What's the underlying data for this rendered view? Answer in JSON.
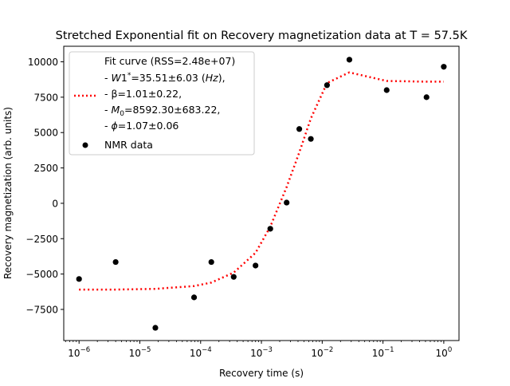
{
  "chart_data": {
    "type": "scatter",
    "title": "Stretched Exponential fit on Recovery magnetization data at T = 57.5K",
    "xlabel": "Recovery time (s)",
    "ylabel": "Recovery magnetization (arb. units)",
    "xscale": "log",
    "xlim": [
      5.6e-07,
      1.78
    ],
    "ylim": [
      -9700,
      11100
    ],
    "grid": false,
    "legend_position": "top-left",
    "x_ticks": [
      {
        "value": 1e-06,
        "base": "10",
        "exp": "−6"
      },
      {
        "value": 1e-05,
        "base": "10",
        "exp": "−5"
      },
      {
        "value": 0.0001,
        "base": "10",
        "exp": "−4"
      },
      {
        "value": 0.001,
        "base": "10",
        "exp": "−3"
      },
      {
        "value": 0.01,
        "base": "10",
        "exp": "−2"
      },
      {
        "value": 0.1,
        "base": "10",
        "exp": "−1"
      },
      {
        "value": 1,
        "base": "10",
        "exp": "0"
      }
    ],
    "y_ticks": [
      {
        "value": -7500,
        "label": "−7500"
      },
      {
        "value": -5000,
        "label": "−5000"
      },
      {
        "value": -2500,
        "label": "−2500"
      },
      {
        "value": 0,
        "label": "0"
      },
      {
        "value": 2500,
        "label": "2500"
      },
      {
        "value": 5000,
        "label": "5000"
      },
      {
        "value": 7500,
        "label": "7500"
      },
      {
        "value": 10000,
        "label": "10000"
      }
    ],
    "series": [
      {
        "name": "NMR data",
        "kind": "scatter",
        "color": "#000000",
        "points": [
          {
            "x": 1e-06,
            "y": -5350
          },
          {
            "x": 4e-06,
            "y": -4150
          },
          {
            "x": 1.8e-05,
            "y": -8800
          },
          {
            "x": 7.8e-05,
            "y": -6650
          },
          {
            "x": 0.00015,
            "y": -4150
          },
          {
            "x": 0.00035,
            "y": -5200
          },
          {
            "x": 0.0008,
            "y": -4400
          },
          {
            "x": 0.0014,
            "y": -1800
          },
          {
            "x": 0.0026,
            "y": 50
          },
          {
            "x": 0.0042,
            "y": 5250
          },
          {
            "x": 0.0065,
            "y": 4550
          },
          {
            "x": 0.012,
            "y": 8350
          },
          {
            "x": 0.028,
            "y": 10150
          },
          {
            "x": 0.115,
            "y": 8000
          },
          {
            "x": 0.52,
            "y": 7500
          },
          {
            "x": 1.0,
            "y": 9650
          }
        ]
      },
      {
        "name": "Fit curve",
        "kind": "line",
        "style": "dotted",
        "color": "#ff0000",
        "points": [
          {
            "x": 1e-06,
            "y": -6100
          },
          {
            "x": 4e-06,
            "y": -6100
          },
          {
            "x": 1.8e-05,
            "y": -6050
          },
          {
            "x": 7.8e-05,
            "y": -5850
          },
          {
            "x": 0.00015,
            "y": -5600
          },
          {
            "x": 0.00035,
            "y": -4900
          },
          {
            "x": 0.0008,
            "y": -3500
          },
          {
            "x": 0.0014,
            "y": -1650
          },
          {
            "x": 0.0026,
            "y": 1150
          },
          {
            "x": 0.0042,
            "y": 3600
          },
          {
            "x": 0.0065,
            "y": 6000
          },
          {
            "x": 0.012,
            "y": 8500
          },
          {
            "x": 0.028,
            "y": 9250
          },
          {
            "x": 0.115,
            "y": 8650
          },
          {
            "x": 0.52,
            "y": 8600
          },
          {
            "x": 1.0,
            "y": 8600
          }
        ]
      }
    ],
    "legend": {
      "fit_lines": [
        "Fit curve (RSS=2.48e+07)",
        "- W1*=35.51±6.03 (Hz),",
        "- β=1.01±0.22,",
        "- M0=8592.30±683.22,",
        "- ϕ=1.07±0.06"
      ],
      "data_label": "NMR data"
    }
  }
}
